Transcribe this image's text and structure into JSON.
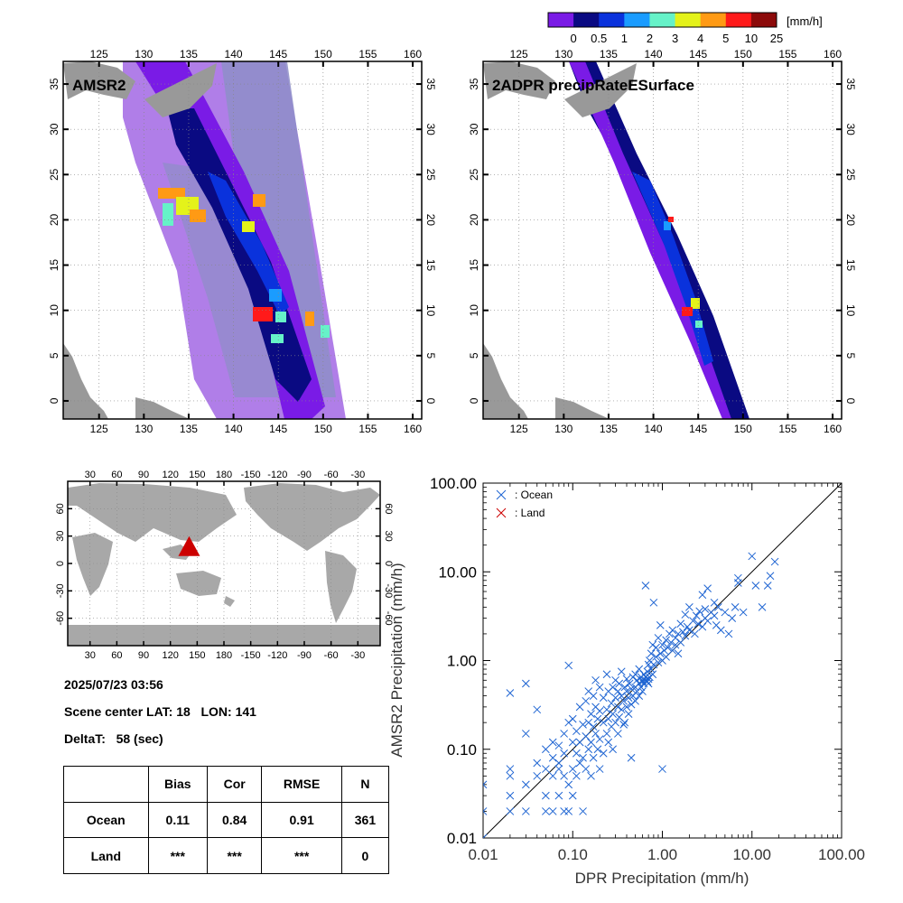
{
  "colorbar": {
    "unit": "[mm/h]",
    "labels": [
      "0",
      "0.5",
      "1",
      "2",
      "3",
      "4",
      "5",
      "10",
      "25"
    ],
    "colors": [
      "#7a1be6",
      "#0a0a82",
      "#0a32dc",
      "#1a9cff",
      "#66f2c8",
      "#e4f21a",
      "#ff9a14",
      "#ff1a1a",
      "#8c0a0a"
    ]
  },
  "maps": [
    {
      "title": "AMSR2",
      "lon_ticks": [
        "125",
        "130",
        "135",
        "140",
        "145",
        "150",
        "155",
        "160"
      ],
      "lat_ticks": [
        "35",
        "30",
        "25",
        "20",
        "15",
        "10",
        "5",
        "0"
      ]
    },
    {
      "title": "2ADPR precipRateESurface",
      "lon_ticks": [
        "125",
        "130",
        "135",
        "140",
        "145",
        "150",
        "155",
        "160"
      ],
      "lat_ticks": [
        "35",
        "30",
        "25",
        "20",
        "15",
        "10",
        "5",
        "0"
      ]
    }
  ],
  "globe": {
    "lon_ticks": [
      "30",
      "60",
      "90",
      "120",
      "150",
      "180",
      "-150",
      "-120",
      "-90",
      "-60",
      "-30"
    ],
    "lat_ticks_left": [
      "60",
      "30",
      "0",
      "-30",
      "-60"
    ],
    "lat_ticks_right": [
      "60",
      "30",
      "0",
      "-30",
      "-60"
    ],
    "marker": {
      "lat": 18,
      "lon": 141,
      "color": "#cc0000"
    }
  },
  "info": {
    "datetime": "2025/07/23 03:56",
    "scene": "Scene center LAT: 18   LON: 141",
    "delta": "DeltaT:   58 (sec)"
  },
  "stats_table": {
    "headers": [
      "",
      "Bias",
      "Cor",
      "RMSE",
      "N"
    ],
    "rows": [
      [
        "Ocean",
        "0.11",
        "0.84",
        "0.91",
        "361"
      ],
      [
        "Land",
        "***",
        "***",
        "***",
        "0"
      ]
    ]
  },
  "chart_data": {
    "type": "scatter",
    "xlabel": "DPR Precipitation (mm/h)",
    "ylabel": "AMSR2 Precipitation (mm/h)",
    "xscale": "log",
    "yscale": "log",
    "xlim": [
      0.01,
      100
    ],
    "ylim": [
      0.01,
      100
    ],
    "x_ticks": [
      "0.01",
      "0.10",
      "1.00",
      "10.00",
      "100.00"
    ],
    "y_ticks": [
      "0.01",
      "0.10",
      "1.00",
      "10.00",
      "100.00"
    ],
    "legend_position": "top-left",
    "series": [
      {
        "name": ": Ocean",
        "color": "#1e64d2",
        "marker": "x",
        "points": [
          [
            0.01,
            0.01
          ],
          [
            0.01,
            0.02
          ],
          [
            0.01,
            0.04
          ],
          [
            0.02,
            0.02
          ],
          [
            0.02,
            0.03
          ],
          [
            0.02,
            0.05
          ],
          [
            0.02,
            0.06
          ],
          [
            0.02,
            0.43
          ],
          [
            0.03,
            0.02
          ],
          [
            0.03,
            0.04
          ],
          [
            0.03,
            0.55
          ],
          [
            0.03,
            0.15
          ],
          [
            0.04,
            0.05
          ],
          [
            0.04,
            0.07
          ],
          [
            0.04,
            0.28
          ],
          [
            0.05,
            0.02
          ],
          [
            0.05,
            0.03
          ],
          [
            0.05,
            0.06
          ],
          [
            0.05,
            0.1
          ],
          [
            0.06,
            0.02
          ],
          [
            0.06,
            0.05
          ],
          [
            0.06,
            0.08
          ],
          [
            0.06,
            0.12
          ],
          [
            0.07,
            0.03
          ],
          [
            0.07,
            0.07
          ],
          [
            0.07,
            0.11
          ],
          [
            0.07,
            0.06
          ],
          [
            0.08,
            0.02
          ],
          [
            0.08,
            0.05
          ],
          [
            0.08,
            0.15
          ],
          [
            0.08,
            0.09
          ],
          [
            0.09,
            0.02
          ],
          [
            0.09,
            0.04
          ],
          [
            0.09,
            0.88
          ],
          [
            0.09,
            0.2
          ],
          [
            0.1,
            0.03
          ],
          [
            0.1,
            0.06
          ],
          [
            0.1,
            0.12
          ],
          [
            0.1,
            0.22
          ],
          [
            0.11,
            0.05
          ],
          [
            0.11,
            0.09
          ],
          [
            0.11,
            0.16
          ],
          [
            0.12,
            0.07
          ],
          [
            0.12,
            0.12
          ],
          [
            0.12,
            0.3
          ],
          [
            0.13,
            0.02
          ],
          [
            0.13,
            0.08
          ],
          [
            0.13,
            0.19
          ],
          [
            0.14,
            0.06
          ],
          [
            0.14,
            0.14
          ],
          [
            0.14,
            0.35
          ],
          [
            0.15,
            0.1
          ],
          [
            0.15,
            0.2
          ],
          [
            0.15,
            0.45
          ],
          [
            0.16,
            0.05
          ],
          [
            0.16,
            0.12
          ],
          [
            0.16,
            0.25
          ],
          [
            0.17,
            0.08
          ],
          [
            0.17,
            0.18
          ],
          [
            0.17,
            0.4
          ],
          [
            0.18,
            0.15
          ],
          [
            0.18,
            0.3
          ],
          [
            0.18,
            0.6
          ],
          [
            0.19,
            0.1
          ],
          [
            0.19,
            0.22
          ],
          [
            0.2,
            0.06
          ],
          [
            0.2,
            0.13
          ],
          [
            0.2,
            0.27
          ],
          [
            0.2,
            0.5
          ],
          [
            0.22,
            0.09
          ],
          [
            0.22,
            0.2
          ],
          [
            0.22,
            0.38
          ],
          [
            0.24,
            0.15
          ],
          [
            0.24,
            0.28
          ],
          [
            0.24,
            0.7
          ],
          [
            0.25,
            0.12
          ],
          [
            0.25,
            0.22
          ],
          [
            0.25,
            0.45
          ],
          [
            0.27,
            0.18
          ],
          [
            0.27,
            0.33
          ],
          [
            0.28,
            0.25
          ],
          [
            0.28,
            0.5
          ],
          [
            0.28,
            0.1
          ],
          [
            0.3,
            0.2
          ],
          [
            0.3,
            0.38
          ],
          [
            0.3,
            0.6
          ],
          [
            0.32,
            0.15
          ],
          [
            0.32,
            0.3
          ],
          [
            0.32,
            0.45
          ],
          [
            0.33,
            0.23
          ],
          [
            0.33,
            0.55
          ],
          [
            0.35,
            0.28
          ],
          [
            0.35,
            0.4
          ],
          [
            0.35,
            0.75
          ],
          [
            0.37,
            0.19
          ],
          [
            0.37,
            0.35
          ],
          [
            0.38,
            0.5
          ],
          [
            0.38,
            0.2
          ],
          [
            0.4,
            0.3
          ],
          [
            0.4,
            0.45
          ],
          [
            0.4,
            0.62
          ],
          [
            0.42,
            0.25
          ],
          [
            0.42,
            0.38
          ],
          [
            0.43,
            0.55
          ],
          [
            0.45,
            0.32
          ],
          [
            0.45,
            0.48
          ],
          [
            0.45,
            0.08
          ],
          [
            0.47,
            0.4
          ],
          [
            0.47,
            0.65
          ],
          [
            0.5,
            0.35
          ],
          [
            0.5,
            0.5
          ],
          [
            0.5,
            0.7
          ],
          [
            0.52,
            0.45
          ],
          [
            0.52,
            0.6
          ],
          [
            0.55,
            0.4
          ],
          [
            0.55,
            0.55
          ],
          [
            0.55,
            0.8
          ],
          [
            0.58,
            0.5
          ],
          [
            0.58,
            0.65
          ],
          [
            0.6,
            0.45
          ],
          [
            0.6,
            0.6
          ],
          [
            0.6,
            0.58
          ],
          [
            0.62,
            0.55
          ],
          [
            0.62,
            0.7
          ],
          [
            0.65,
            0.6
          ],
          [
            0.65,
            0.65
          ],
          [
            0.65,
            7.0
          ],
          [
            0.68,
            0.58
          ],
          [
            0.68,
            0.75
          ],
          [
            0.7,
            0.55
          ],
          [
            0.7,
            0.62
          ],
          [
            0.7,
            0.9
          ],
          [
            0.72,
            0.65
          ],
          [
            0.72,
            1.0
          ],
          [
            0.75,
            0.8
          ],
          [
            0.75,
            1.2
          ],
          [
            0.78,
            0.7
          ],
          [
            0.78,
            1.5
          ],
          [
            0.8,
            0.9
          ],
          [
            0.8,
            4.5
          ],
          [
            0.85,
            1.1
          ],
          [
            0.85,
            1.4
          ],
          [
            0.9,
            0.95
          ],
          [
            0.9,
            1.8
          ],
          [
            0.95,
            1.2
          ],
          [
            0.95,
            2.5
          ],
          [
            1.0,
            0.06
          ],
          [
            1.0,
            1.0
          ],
          [
            1.0,
            1.5
          ],
          [
            1.05,
            1.3
          ],
          [
            1.1,
            1.7
          ],
          [
            1.1,
            1.1
          ],
          [
            1.15,
            1.4
          ],
          [
            1.2,
            2.0
          ],
          [
            1.25,
            1.6
          ],
          [
            1.3,
            1.3
          ],
          [
            1.3,
            2.2
          ],
          [
            1.4,
            1.8
          ],
          [
            1.4,
            1.5
          ],
          [
            1.5,
            2.0
          ],
          [
            1.5,
            1.2
          ],
          [
            1.6,
            1.6
          ],
          [
            1.6,
            2.6
          ],
          [
            1.7,
            2.1
          ],
          [
            1.8,
            3.3
          ],
          [
            1.8,
            1.9
          ],
          [
            1.9,
            2.4
          ],
          [
            2.0,
            2.2
          ],
          [
            2.0,
            4.0
          ],
          [
            2.2,
            2.8
          ],
          [
            2.3,
            2.0
          ],
          [
            2.4,
            3.2
          ],
          [
            2.5,
            2.6
          ],
          [
            2.6,
            3.6
          ],
          [
            2.8,
            2.4
          ],
          [
            2.8,
            5.5
          ],
          [
            3.0,
            3.0
          ],
          [
            3.0,
            3.8
          ],
          [
            3.2,
            2.8
          ],
          [
            3.2,
            6.5
          ],
          [
            3.5,
            3.5
          ],
          [
            3.8,
            3.2
          ],
          [
            3.8,
            4.5
          ],
          [
            4.0,
            2.5
          ],
          [
            4.2,
            4.0
          ],
          [
            4.5,
            2.2
          ],
          [
            5.0,
            3.5
          ],
          [
            5.5,
            2.0
          ],
          [
            6.0,
            3.0
          ],
          [
            6.5,
            4.0
          ],
          [
            7.0,
            8.5
          ],
          [
            7.0,
            7.5
          ],
          [
            8.0,
            3.5
          ],
          [
            10.0,
            15.0
          ],
          [
            11.0,
            7.0
          ],
          [
            13.0,
            4.0
          ],
          [
            15.0,
            7.0
          ],
          [
            16.0,
            9.0
          ],
          [
            18.0,
            13.0
          ]
        ]
      },
      {
        "name": ": Land",
        "color": "#cc0000",
        "marker": "x",
        "points": []
      }
    ]
  }
}
